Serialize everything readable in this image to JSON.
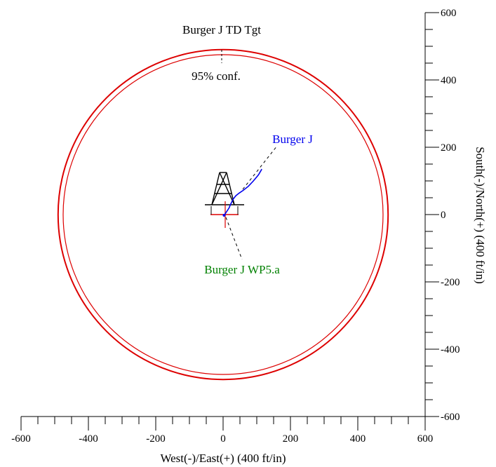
{
  "chart_data": {
    "type": "line",
    "title": "Burger J TD Tgt",
    "xlabel": "West(-)/East(+) (400 ft/in)",
    "ylabel": "South(-)/North(+) (400 ft/in)",
    "xlim": [
      -600,
      600
    ],
    "ylim": [
      -600,
      600
    ],
    "x_ticks": [
      -600,
      -400,
      -200,
      0,
      200,
      400,
      600
    ],
    "y_ticks": [
      -600,
      -400,
      -200,
      0,
      200,
      400,
      600
    ],
    "grid": false,
    "target": {
      "name": "Burger J TD Tgt",
      "label": "95% conf.",
      "center": [
        0,
        0
      ],
      "radii": [
        490,
        475
      ],
      "color": "#dd0000"
    },
    "series": [
      {
        "name": "Burger J",
        "color": "#0000ee",
        "x": [
          3,
          6,
          10,
          14,
          18,
          21,
          25,
          30,
          38,
          48,
          60,
          75,
          90,
          105,
          115
        ],
        "y": [
          -2,
          2,
          8,
          14,
          20,
          28,
          36,
          46,
          56,
          64,
          72,
          84,
          100,
          118,
          135
        ]
      }
    ],
    "plan": {
      "name": "Burger J WP5.a",
      "color": "#008000"
    },
    "rig": {
      "name": "rig-icon",
      "color": "#000000"
    },
    "axis_color": "#000000"
  }
}
